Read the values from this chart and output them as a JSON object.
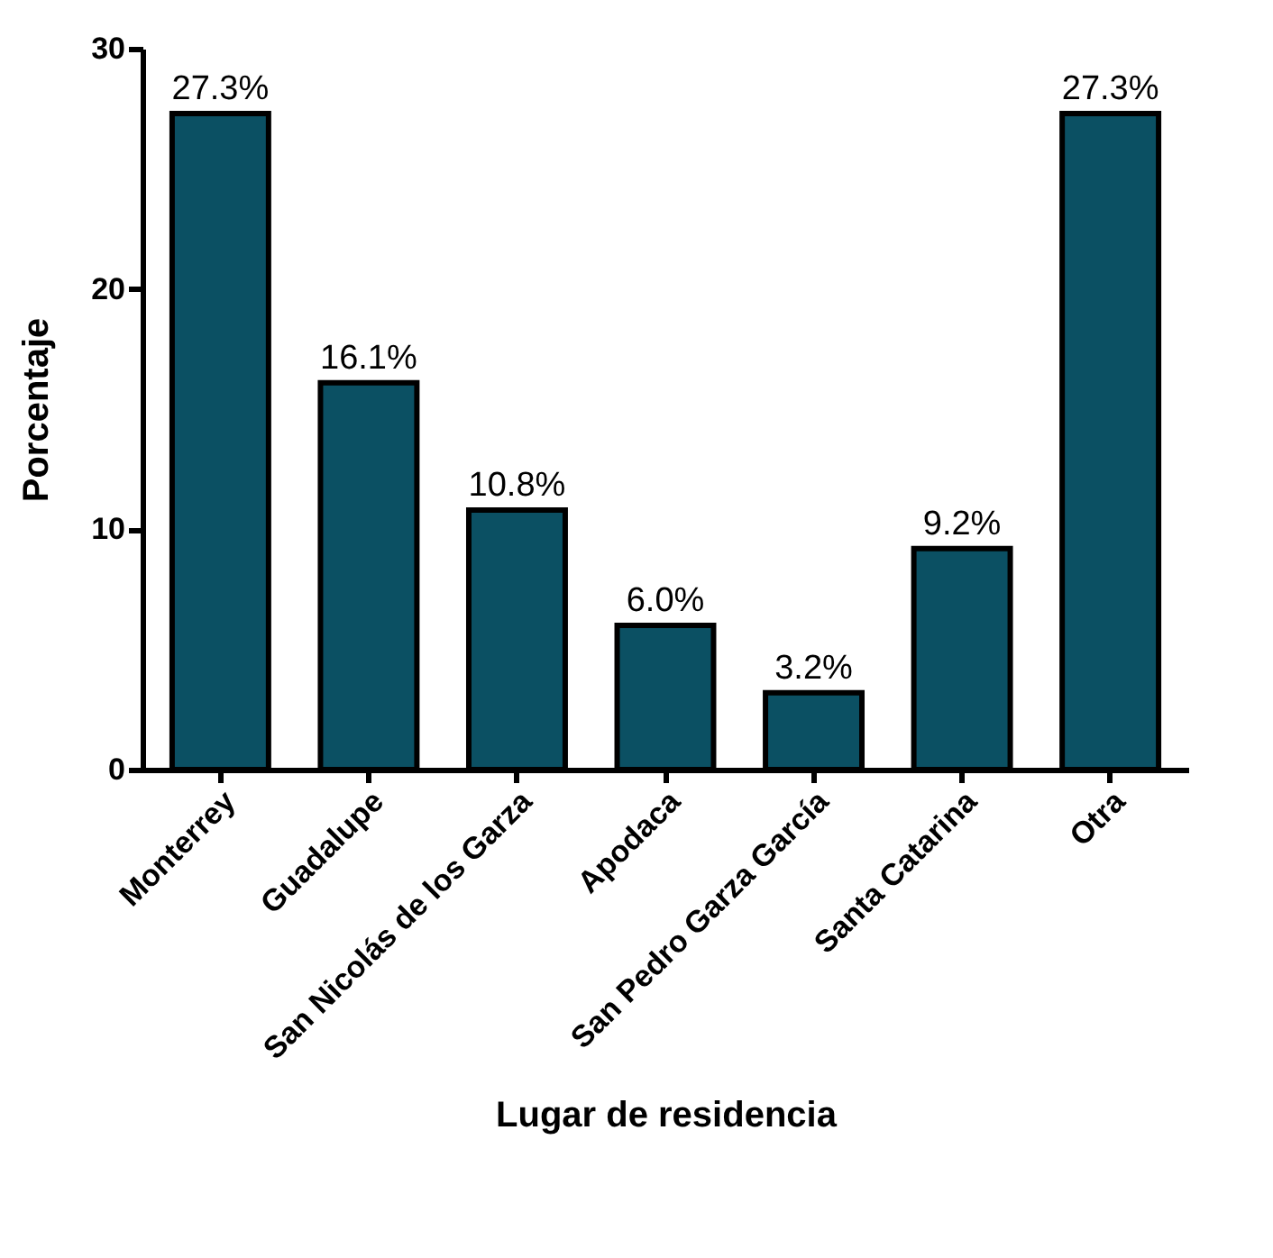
{
  "chart_data": {
    "type": "bar",
    "xlabel": "Lugar de residencia",
    "ylabel": "Porcentaje",
    "categories": [
      "Monterrey",
      "Guadalupe",
      "San Nicolás de los Garza",
      "Apodaca",
      "San Pedro Garza García",
      "Santa Catarina",
      "Otra"
    ],
    "values": [
      27.3,
      16.1,
      10.8,
      6.0,
      3.2,
      9.2,
      27.3
    ],
    "value_labels": [
      "27.3%",
      "16.1%",
      "10.8%",
      "6.0%",
      "3.2%",
      "9.2%",
      "27.3%"
    ],
    "color": "#0b5063",
    "ylim": [
      0,
      30
    ],
    "yticks": [
      0,
      10,
      20,
      30
    ],
    "grid": false
  }
}
